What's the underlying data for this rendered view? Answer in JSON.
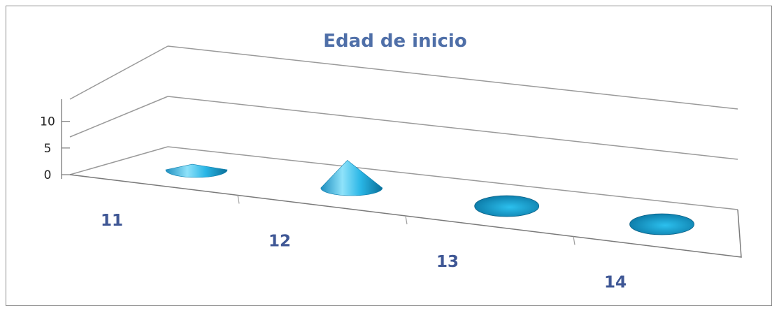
{
  "chart_data": {
    "type": "bar",
    "title": "Edad de inicio",
    "xlabel": "",
    "ylabel": "",
    "categories": [
      "11",
      "12",
      "13",
      "14"
    ],
    "values": [
      1,
      5,
      0,
      0
    ],
    "y_ticks": [
      "0",
      "5",
      "10"
    ],
    "ylim": [
      0,
      10
    ],
    "bar_shape": "cone",
    "perspective": "3d",
    "grid": true,
    "legend": "none",
    "colors": {
      "cone_light": "#8fe2fa",
      "cone_mid": "#29b6e6",
      "cone_dark": "#0a6f98",
      "title": "#4f6fa8",
      "x_tick": "#3f5795",
      "grid": "#9a9a9a"
    }
  }
}
